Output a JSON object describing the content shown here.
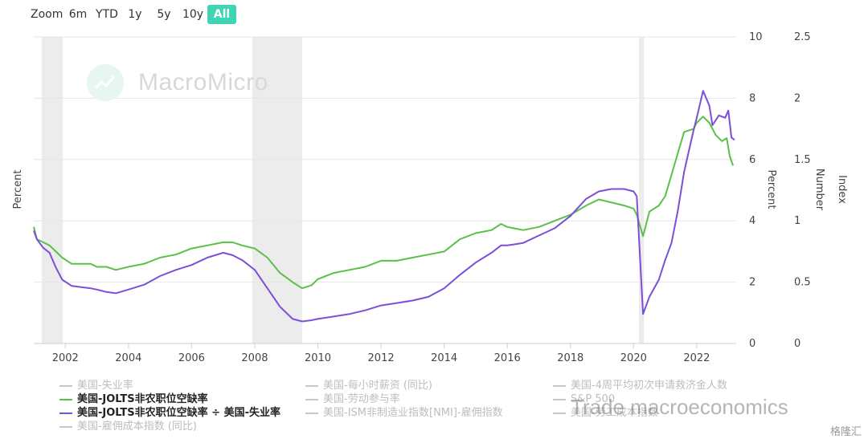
{
  "zoom": {
    "label": "Zoom",
    "buttons": [
      {
        "label": "6m",
        "active": false
      },
      {
        "label": "YTD",
        "active": false
      },
      {
        "label": "1y",
        "active": false
      },
      {
        "label": "5y",
        "active": false
      },
      {
        "label": "10y",
        "active": false
      },
      {
        "label": "All",
        "active": true
      }
    ]
  },
  "watermark": {
    "brand": "MacroMicro",
    "overlay": "Trade macroeconomics",
    "corner": "格隆汇"
  },
  "legend": [
    {
      "label": "美国-失业率",
      "color": "#c8c8c8",
      "visible": false
    },
    {
      "label": "美国-每小时薪资 (同比)",
      "color": "#c8c8c8",
      "visible": false
    },
    {
      "label": "美国-4周平均初次申请救济金人数",
      "color": "#c8c8c8",
      "visible": false
    },
    {
      "label": "美国-JOLTS非农职位空缺率",
      "color": "#5cbf4a",
      "visible": true
    },
    {
      "label": "美国-劳动参与率",
      "color": "#c8c8c8",
      "visible": false
    },
    {
      "label": "S&P 500",
      "color": "#c8c8c8",
      "visible": false
    },
    {
      "label": "美国-JOLTS非农职位空缺率 ÷ 美国-失业率",
      "color": "#7b4fd6",
      "visible": true
    },
    {
      "label": "美国-ISM非制造业指数[NMI]-雇佣指数",
      "color": "#c8c8c8",
      "visible": false
    },
    {
      "label": "美国-劳工成本指数",
      "color": "#c8c8c8",
      "visible": false
    },
    {
      "label": "美国-雇佣成本指数 (同比)",
      "color": "#c8c8c8",
      "visible": false
    }
  ],
  "chart_data": {
    "type": "line",
    "x_range": [
      2001.0,
      2023.25
    ],
    "x_ticks": [
      "2002",
      "2004",
      "2006",
      "2008",
      "2010",
      "2012",
      "2014",
      "2016",
      "2018",
      "2020",
      "2022"
    ],
    "recessions": [
      [
        2001.25,
        2001.92
      ],
      [
        2007.92,
        2009.5
      ],
      [
        2020.17,
        2020.33
      ]
    ],
    "axes": [
      {
        "title": "Percent",
        "side": "left",
        "range": [
          0,
          10
        ],
        "ticks": []
      },
      {
        "title": "Percent",
        "side": "right",
        "range": [
          0,
          10
        ],
        "ticks": [
          "0",
          "2",
          "4",
          "6",
          "8",
          "10"
        ]
      },
      {
        "title": "Number",
        "side": "right",
        "range": [
          0,
          2.5
        ],
        "ticks": []
      },
      {
        "title": "Index",
        "side": "right",
        "range": [
          0,
          2.5
        ],
        "ticks": [
          "0",
          "0.5",
          "1",
          "1.5",
          "2",
          "2.5"
        ]
      }
    ],
    "series": [
      {
        "name": "美国-JOLTS非农职位空缺率",
        "axis": "Percent",
        "color": "#5cbf4a",
        "points": [
          [
            2001.0,
            3.8
          ],
          [
            2001.1,
            3.4
          ],
          [
            2001.3,
            3.3
          ],
          [
            2001.5,
            3.2
          ],
          [
            2001.7,
            3.0
          ],
          [
            2001.9,
            2.8
          ],
          [
            2002.2,
            2.6
          ],
          [
            2002.5,
            2.6
          ],
          [
            2002.8,
            2.6
          ],
          [
            2003.0,
            2.5
          ],
          [
            2003.3,
            2.5
          ],
          [
            2003.6,
            2.4
          ],
          [
            2004.0,
            2.5
          ],
          [
            2004.5,
            2.6
          ],
          [
            2005.0,
            2.8
          ],
          [
            2005.5,
            2.9
          ],
          [
            2006.0,
            3.1
          ],
          [
            2006.5,
            3.2
          ],
          [
            2007.0,
            3.3
          ],
          [
            2007.3,
            3.3
          ],
          [
            2007.6,
            3.2
          ],
          [
            2008.0,
            3.1
          ],
          [
            2008.4,
            2.8
          ],
          [
            2008.8,
            2.3
          ],
          [
            2009.2,
            2.0
          ],
          [
            2009.5,
            1.8
          ],
          [
            2009.8,
            1.9
          ],
          [
            2010.0,
            2.1
          ],
          [
            2010.5,
            2.3
          ],
          [
            2011.0,
            2.4
          ],
          [
            2011.5,
            2.5
          ],
          [
            2012.0,
            2.7
          ],
          [
            2012.5,
            2.7
          ],
          [
            2013.0,
            2.8
          ],
          [
            2013.5,
            2.9
          ],
          [
            2014.0,
            3.0
          ],
          [
            2014.5,
            3.4
          ],
          [
            2015.0,
            3.6
          ],
          [
            2015.5,
            3.7
          ],
          [
            2015.8,
            3.9
          ],
          [
            2016.0,
            3.8
          ],
          [
            2016.5,
            3.7
          ],
          [
            2017.0,
            3.8
          ],
          [
            2017.5,
            4.0
          ],
          [
            2018.0,
            4.2
          ],
          [
            2018.5,
            4.5
          ],
          [
            2018.9,
            4.7
          ],
          [
            2019.3,
            4.6
          ],
          [
            2019.7,
            4.5
          ],
          [
            2020.0,
            4.4
          ],
          [
            2020.1,
            4.2
          ],
          [
            2020.3,
            3.5
          ],
          [
            2020.5,
            4.3
          ],
          [
            2020.8,
            4.5
          ],
          [
            2021.0,
            4.8
          ],
          [
            2021.2,
            5.5
          ],
          [
            2021.4,
            6.2
          ],
          [
            2021.6,
            6.9
          ],
          [
            2021.9,
            7.0
          ],
          [
            2022.0,
            7.2
          ],
          [
            2022.2,
            7.4
          ],
          [
            2022.4,
            7.2
          ],
          [
            2022.6,
            6.8
          ],
          [
            2022.8,
            6.6
          ],
          [
            2022.95,
            6.7
          ],
          [
            2023.05,
            6.1
          ],
          [
            2023.15,
            5.8
          ]
        ]
      },
      {
        "name": "美国-JOLTS非农职位空缺率 ÷ 美国-失业率",
        "axis": "Index",
        "color": "#7b4fd6",
        "points": [
          [
            2001.0,
            0.92
          ],
          [
            2001.1,
            0.85
          ],
          [
            2001.3,
            0.78
          ],
          [
            2001.5,
            0.74
          ],
          [
            2001.7,
            0.62
          ],
          [
            2001.9,
            0.52
          ],
          [
            2002.2,
            0.47
          ],
          [
            2002.5,
            0.46
          ],
          [
            2002.8,
            0.45
          ],
          [
            2003.0,
            0.44
          ],
          [
            2003.3,
            0.42
          ],
          [
            2003.6,
            0.41
          ],
          [
            2004.0,
            0.44
          ],
          [
            2004.5,
            0.48
          ],
          [
            2005.0,
            0.55
          ],
          [
            2005.5,
            0.6
          ],
          [
            2006.0,
            0.64
          ],
          [
            2006.5,
            0.7
          ],
          [
            2007.0,
            0.74
          ],
          [
            2007.3,
            0.72
          ],
          [
            2007.6,
            0.68
          ],
          [
            2008.0,
            0.6
          ],
          [
            2008.4,
            0.45
          ],
          [
            2008.8,
            0.3
          ],
          [
            2009.2,
            0.2
          ],
          [
            2009.5,
            0.18
          ],
          [
            2009.8,
            0.19
          ],
          [
            2010.0,
            0.2
          ],
          [
            2010.5,
            0.22
          ],
          [
            2011.0,
            0.24
          ],
          [
            2011.5,
            0.27
          ],
          [
            2012.0,
            0.31
          ],
          [
            2012.5,
            0.33
          ],
          [
            2013.0,
            0.35
          ],
          [
            2013.5,
            0.38
          ],
          [
            2014.0,
            0.45
          ],
          [
            2014.5,
            0.56
          ],
          [
            2015.0,
            0.66
          ],
          [
            2015.5,
            0.74
          ],
          [
            2015.8,
            0.8
          ],
          [
            2016.0,
            0.8
          ],
          [
            2016.5,
            0.82
          ],
          [
            2017.0,
            0.88
          ],
          [
            2017.5,
            0.94
          ],
          [
            2018.0,
            1.04
          ],
          [
            2018.5,
            1.18
          ],
          [
            2018.9,
            1.24
          ],
          [
            2019.3,
            1.26
          ],
          [
            2019.7,
            1.26
          ],
          [
            2020.0,
            1.24
          ],
          [
            2020.1,
            1.2
          ],
          [
            2020.3,
            0.24
          ],
          [
            2020.5,
            0.38
          ],
          [
            2020.8,
            0.52
          ],
          [
            2021.0,
            0.68
          ],
          [
            2021.2,
            0.82
          ],
          [
            2021.4,
            1.08
          ],
          [
            2021.6,
            1.4
          ],
          [
            2021.9,
            1.74
          ],
          [
            2022.0,
            1.84
          ],
          [
            2022.2,
            2.06
          ],
          [
            2022.4,
            1.94
          ],
          [
            2022.5,
            1.78
          ],
          [
            2022.7,
            1.86
          ],
          [
            2022.9,
            1.84
          ],
          [
            2023.0,
            1.9
          ],
          [
            2023.1,
            1.68
          ],
          [
            2023.2,
            1.66
          ]
        ]
      }
    ]
  }
}
